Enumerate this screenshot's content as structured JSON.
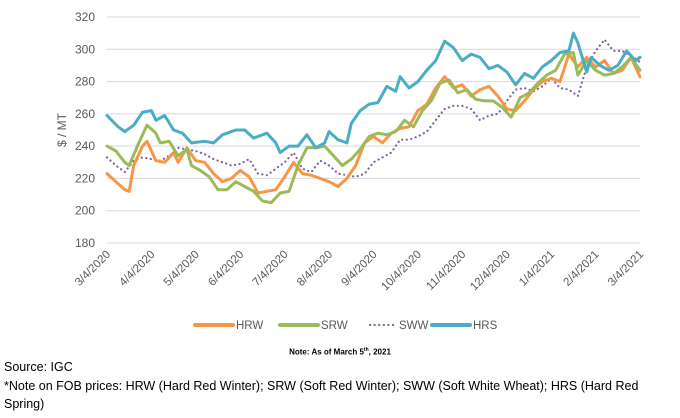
{
  "chart_data": {
    "type": "line",
    "title": "",
    "xlabel": "",
    "ylabel": "$ / MT",
    "ylim": [
      180,
      320
    ],
    "yticks": [
      180,
      200,
      220,
      240,
      260,
      280,
      300,
      320
    ],
    "x_unit": "months since 3/4/2020",
    "xlim": [
      0,
      12
    ],
    "xtick_labels": [
      "3/4/2020",
      "4/4/2020",
      "5/4/2020",
      "6/4/2020",
      "7/4/2020",
      "8/4/2020",
      "9/4/2020",
      "10/4/2020",
      "11/4/2020",
      "12/4/2020",
      "1/4/2021",
      "2/4/2021",
      "3/4/2021"
    ],
    "grid": true,
    "legend_position": "bottom",
    "series": [
      {
        "name": "HRW",
        "color": "#F79646",
        "style": "solid",
        "x": [
          0,
          0.2,
          0.4,
          0.5,
          0.6,
          0.8,
          0.9,
          1.1,
          1.3,
          1.5,
          1.6,
          1.8,
          2.0,
          2.2,
          2.4,
          2.6,
          2.8,
          3.0,
          3.2,
          3.4,
          3.6,
          3.8,
          4.0,
          4.2,
          4.4,
          4.6,
          4.8,
          5.0,
          5.2,
          5.4,
          5.6,
          5.8,
          6.0,
          6.2,
          6.4,
          6.6,
          6.8,
          7.0,
          7.2,
          7.4,
          7.6,
          7.8,
          8.0,
          8.2,
          8.4,
          8.6,
          8.8,
          9.0,
          9.2,
          9.4,
          9.6,
          9.8,
          10.0,
          10.2,
          10.4,
          10.6,
          10.8,
          11.0,
          11.2,
          11.4,
          11.6,
          11.8,
          12
        ],
        "y": [
          223,
          218,
          213,
          212,
          228,
          240,
          243,
          231,
          230,
          236,
          230,
          239,
          231,
          230,
          223,
          218,
          220,
          225,
          221,
          211,
          212,
          213,
          221,
          230,
          223,
          222,
          220,
          218,
          215,
          220,
          228,
          242,
          246,
          242,
          248,
          251,
          252,
          262,
          266,
          276,
          283,
          276,
          278,
          271,
          275,
          277,
          271,
          263,
          262,
          268,
          275,
          280,
          282,
          280,
          297,
          289,
          295,
          289,
          293,
          285,
          287,
          295,
          283
        ]
      },
      {
        "name": "SRW",
        "color": "#9BBB59",
        "style": "solid",
        "x": [
          0,
          0.2,
          0.4,
          0.5,
          0.7,
          0.9,
          1.1,
          1.2,
          1.4,
          1.6,
          1.8,
          1.9,
          2.1,
          2.3,
          2.5,
          2.7,
          2.9,
          3.1,
          3.3,
          3.5,
          3.7,
          3.9,
          4.1,
          4.3,
          4.5,
          4.7,
          4.9,
          5.1,
          5.3,
          5.5,
          5.7,
          5.9,
          6.1,
          6.3,
          6.5,
          6.7,
          6.9,
          7.1,
          7.3,
          7.5,
          7.7,
          7.9,
          8.1,
          8.3,
          8.5,
          8.7,
          8.9,
          9.1,
          9.3,
          9.5,
          9.7,
          9.9,
          10.1,
          10.3,
          10.5,
          10.6,
          10.8,
          11.0,
          11.2,
          11.4,
          11.6,
          11.8,
          12
        ],
        "y": [
          240,
          237,
          230,
          228,
          241,
          253,
          248,
          242,
          243,
          234,
          238,
          228,
          225,
          221,
          213,
          213,
          218,
          215,
          212,
          206,
          205,
          211,
          212,
          228,
          239,
          239,
          240,
          234,
          228,
          232,
          238,
          246,
          248,
          247,
          249,
          256,
          252,
          262,
          268,
          279,
          281,
          273,
          275,
          269,
          268,
          268,
          264,
          258,
          270,
          273,
          279,
          284,
          287,
          297,
          298,
          284,
          293,
          287,
          284,
          285,
          289,
          295,
          287
        ]
      },
      {
        "name": "SWW",
        "color": "#8064A2",
        "style": "dotted",
        "x": [
          0,
          0.2,
          0.4,
          0.6,
          0.8,
          1.0,
          1.2,
          1.4,
          1.6,
          1.8,
          2.0,
          2.2,
          2.4,
          2.6,
          2.8,
          3.0,
          3.2,
          3.4,
          3.6,
          3.8,
          4.0,
          4.2,
          4.4,
          4.6,
          4.8,
          5.0,
          5.2,
          5.4,
          5.6,
          5.8,
          6.0,
          6.2,
          6.4,
          6.6,
          6.8,
          7.0,
          7.2,
          7.4,
          7.6,
          7.8,
          8.0,
          8.2,
          8.4,
          8.6,
          8.8,
          9.0,
          9.2,
          9.4,
          9.6,
          9.8,
          10.0,
          10.2,
          10.4,
          10.6,
          10.8,
          11.0,
          11.2,
          11.4,
          11.6,
          11.8,
          12
        ],
        "y": [
          233,
          228,
          224,
          231,
          233,
          232,
          231,
          234,
          239,
          238,
          237,
          235,
          232,
          230,
          228,
          229,
          232,
          223,
          222,
          226,
          230,
          236,
          226,
          224,
          231,
          228,
          223,
          222,
          221,
          223,
          230,
          233,
          236,
          244,
          244,
          246,
          249,
          256,
          263,
          265,
          265,
          263,
          256,
          259,
          260,
          268,
          275,
          276,
          274,
          277,
          282,
          276,
          275,
          271,
          289,
          299,
          306,
          299,
          299,
          296,
          292
        ]
      },
      {
        "name": "HRS",
        "color": "#4BACC6",
        "style": "solid",
        "x": [
          0,
          0.25,
          0.4,
          0.6,
          0.8,
          1.0,
          1.1,
          1.3,
          1.5,
          1.7,
          1.9,
          2.2,
          2.4,
          2.6,
          2.9,
          3.1,
          3.3,
          3.6,
          3.8,
          3.9,
          4.1,
          4.3,
          4.5,
          4.7,
          4.9,
          5.0,
          5.2,
          5.4,
          5.5,
          5.7,
          5.9,
          6.1,
          6.3,
          6.5,
          6.6,
          6.8,
          7.0,
          7.2,
          7.4,
          7.6,
          7.8,
          8.0,
          8.2,
          8.4,
          8.6,
          8.8,
          9.0,
          9.2,
          9.4,
          9.6,
          9.8,
          10.0,
          10.2,
          10.4,
          10.5,
          10.6,
          10.8,
          10.9,
          11.1,
          11.3,
          11.5,
          11.7,
          11.9,
          12
        ],
        "y": [
          259,
          252,
          249,
          253,
          261,
          262,
          256,
          259,
          250,
          248,
          242,
          243,
          242,
          247,
          250,
          250,
          245,
          248,
          242,
          236,
          240,
          240,
          247,
          239,
          242,
          249,
          244,
          242,
          254,
          262,
          266,
          267,
          277,
          274,
          283,
          276,
          280,
          287,
          293,
          305,
          301,
          293,
          297,
          295,
          288,
          290,
          286,
          278,
          285,
          282,
          289,
          293,
          298,
          299,
          310,
          304,
          286,
          295,
          290,
          287,
          290,
          299,
          293,
          295
        ]
      }
    ]
  },
  "note": {
    "prefix": "Note: As of March 5",
    "sup": "th",
    "suffix": ", 2021"
  },
  "source": "Source: IGC",
  "footnote_line1": "*Note on FOB prices: HRW (Hard Red Winter); SRW (Soft Red Winter); SWW (Soft White Wheat); HRS (Hard Red",
  "footnote_line2": "Spring)"
}
